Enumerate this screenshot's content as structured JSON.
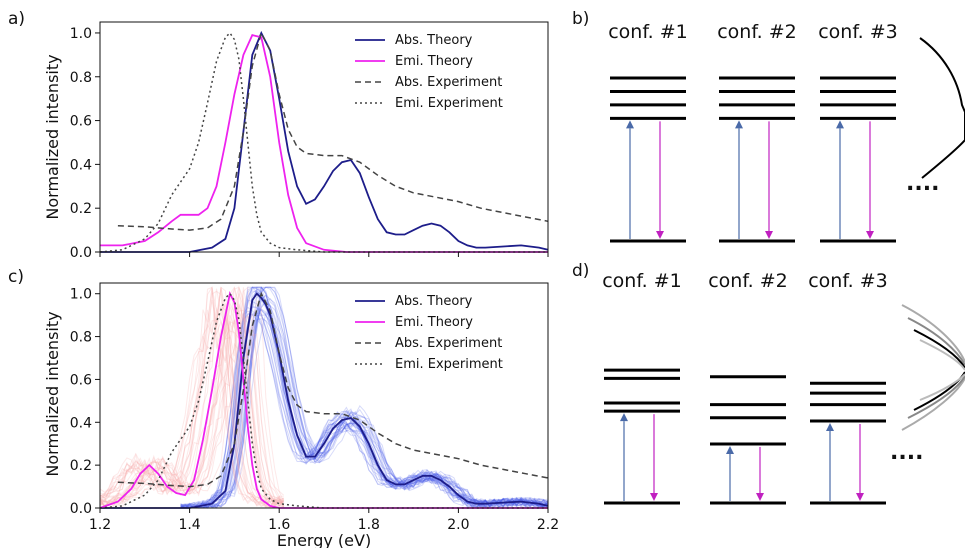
{
  "figure": {
    "panel_labels": [
      "a)",
      "b)",
      "c)",
      "d)"
    ],
    "ellipsis": "...."
  },
  "colors": {
    "abs_theory": "#1d1d8a",
    "emi_theory": "#ee22ee",
    "experiment": "#444444",
    "abs_samples": "#4a5ae8",
    "emi_samples": "#f6a6a6",
    "up_arrow": "#4a6aa8",
    "down_arrow": "#c020c0"
  },
  "chart_data": [
    {
      "type": "line",
      "panel": "a)",
      "xlabel": "",
      "ylabel": "Normalized intensity",
      "xlim": [
        1.2,
        2.2
      ],
      "ylim": [
        0,
        1.05
      ],
      "xticks": [
        1.2,
        1.4,
        1.6,
        1.8,
        2.0,
        2.2
      ],
      "yticks": [
        "0.0",
        "0.2",
        "0.4",
        "0.6",
        "0.8",
        "1.0"
      ],
      "show_x_tick_labels": false,
      "legend": {
        "placement": "top-right",
        "entries": [
          "Abs. Theory",
          "Emi. Theory",
          "Abs. Experiment",
          "Emi. Experiment"
        ]
      },
      "series": [
        {
          "name": "Abs. Theory",
          "style": "solid",
          "x": [
            1.2,
            1.3,
            1.4,
            1.45,
            1.48,
            1.5,
            1.52,
            1.54,
            1.56,
            1.58,
            1.6,
            1.62,
            1.64,
            1.66,
            1.68,
            1.7,
            1.72,
            1.74,
            1.76,
            1.78,
            1.8,
            1.82,
            1.84,
            1.86,
            1.88,
            1.9,
            1.92,
            1.94,
            1.96,
            1.98,
            2.0,
            2.02,
            2.04,
            2.06,
            2.1,
            2.14,
            2.18,
            2.2
          ],
          "y": [
            0.0,
            0.0,
            0.0,
            0.02,
            0.06,
            0.2,
            0.55,
            0.9,
            1.0,
            0.92,
            0.7,
            0.46,
            0.3,
            0.22,
            0.24,
            0.3,
            0.37,
            0.41,
            0.42,
            0.36,
            0.25,
            0.15,
            0.09,
            0.08,
            0.08,
            0.1,
            0.12,
            0.13,
            0.12,
            0.09,
            0.05,
            0.03,
            0.02,
            0.02,
            0.025,
            0.03,
            0.02,
            0.01
          ]
        },
        {
          "name": "Emi. Theory",
          "style": "solid",
          "x": [
            1.2,
            1.25,
            1.3,
            1.33,
            1.36,
            1.38,
            1.4,
            1.42,
            1.44,
            1.46,
            1.48,
            1.5,
            1.52,
            1.54,
            1.56,
            1.58,
            1.6,
            1.62,
            1.64,
            1.66,
            1.7,
            1.75,
            1.8,
            2.2
          ],
          "y": [
            0.03,
            0.03,
            0.05,
            0.09,
            0.14,
            0.17,
            0.17,
            0.17,
            0.2,
            0.3,
            0.5,
            0.72,
            0.9,
            0.99,
            0.98,
            0.8,
            0.5,
            0.26,
            0.11,
            0.04,
            0.01,
            0.0,
            0.0,
            0.0
          ]
        },
        {
          "name": "Abs. Experiment",
          "style": "dashed",
          "x": [
            1.24,
            1.3,
            1.36,
            1.4,
            1.44,
            1.47,
            1.5,
            1.52,
            1.54,
            1.56,
            1.58,
            1.6,
            1.62,
            1.64,
            1.66,
            1.7,
            1.74,
            1.78,
            1.82,
            1.86,
            1.9,
            1.95,
            2.0,
            2.05,
            2.1,
            2.15,
            2.2
          ],
          "y": [
            0.12,
            0.115,
            0.105,
            0.1,
            0.11,
            0.15,
            0.3,
            0.55,
            0.85,
            1.0,
            0.92,
            0.72,
            0.56,
            0.48,
            0.45,
            0.44,
            0.44,
            0.41,
            0.35,
            0.3,
            0.27,
            0.25,
            0.23,
            0.2,
            0.18,
            0.16,
            0.14
          ]
        },
        {
          "name": "Emi. Experiment",
          "style": "dotted",
          "x": [
            1.2,
            1.25,
            1.3,
            1.33,
            1.36,
            1.38,
            1.4,
            1.42,
            1.44,
            1.46,
            1.48,
            1.49,
            1.5,
            1.51,
            1.52,
            1.53,
            1.54,
            1.55,
            1.56,
            1.58,
            1.6,
            1.64,
            1.7,
            1.8,
            2.2
          ],
          "y": [
            0.0,
            0.01,
            0.06,
            0.13,
            0.26,
            0.32,
            0.38,
            0.5,
            0.68,
            0.87,
            0.98,
            1.0,
            0.97,
            0.88,
            0.7,
            0.5,
            0.3,
            0.17,
            0.09,
            0.04,
            0.02,
            0.01,
            0.0,
            0.0,
            0.0
          ]
        }
      ]
    },
    {
      "type": "line",
      "panel": "c)",
      "xlabel": "Energy (eV)",
      "ylabel": "Normalized intensity",
      "xlim": [
        1.2,
        2.2
      ],
      "ylim": [
        0,
        1.05
      ],
      "xticks": [
        1.2,
        1.4,
        1.6,
        1.8,
        2.0,
        2.2
      ],
      "xticklabels": [
        "1.2",
        "1.4",
        "1.6",
        "1.8",
        "2.0",
        "2.2"
      ],
      "yticks": [
        "0.0",
        "0.2",
        "0.4",
        "0.6",
        "0.8",
        "1.0"
      ],
      "legend": {
        "placement": "top-right",
        "entries": [
          "Abs. Theory",
          "Emi. Theory",
          "Abs. Experiment",
          "Emi. Experiment"
        ]
      },
      "series": [
        {
          "name": "Abs. Theory",
          "style": "solid",
          "x": [
            1.2,
            1.4,
            1.45,
            1.48,
            1.5,
            1.52,
            1.54,
            1.55,
            1.56,
            1.57,
            1.58,
            1.6,
            1.62,
            1.64,
            1.66,
            1.68,
            1.7,
            1.72,
            1.74,
            1.76,
            1.78,
            1.8,
            1.82,
            1.84,
            1.86,
            1.88,
            1.9,
            1.92,
            1.94,
            1.96,
            1.98,
            2.0,
            2.02,
            2.04,
            2.06,
            2.1,
            2.14,
            2.18,
            2.2
          ],
          "y": [
            0.0,
            0.0,
            0.02,
            0.08,
            0.3,
            0.7,
            0.97,
            1.0,
            0.98,
            0.95,
            0.9,
            0.72,
            0.5,
            0.34,
            0.24,
            0.24,
            0.3,
            0.37,
            0.41,
            0.42,
            0.38,
            0.3,
            0.2,
            0.13,
            0.11,
            0.11,
            0.13,
            0.15,
            0.15,
            0.13,
            0.1,
            0.06,
            0.03,
            0.02,
            0.02,
            0.025,
            0.03,
            0.02,
            0.01
          ]
        },
        {
          "name": "Emi. Theory",
          "style": "solid",
          "x": [
            1.2,
            1.24,
            1.27,
            1.29,
            1.31,
            1.33,
            1.35,
            1.37,
            1.39,
            1.41,
            1.43,
            1.45,
            1.47,
            1.49,
            1.5,
            1.51,
            1.52,
            1.53,
            1.54,
            1.55,
            1.56,
            1.58,
            1.6,
            1.65,
            2.2
          ],
          "y": [
            0.0,
            0.03,
            0.09,
            0.16,
            0.2,
            0.16,
            0.1,
            0.07,
            0.06,
            0.13,
            0.32,
            0.55,
            0.8,
            1.0,
            0.96,
            0.82,
            0.6,
            0.38,
            0.2,
            0.09,
            0.04,
            0.01,
            0.0,
            0.0,
            0.0
          ]
        },
        {
          "name": "Abs. Experiment",
          "style": "dashed",
          "x": [
            1.24,
            1.3,
            1.36,
            1.4,
            1.44,
            1.47,
            1.5,
            1.52,
            1.54,
            1.56,
            1.58,
            1.6,
            1.62,
            1.64,
            1.66,
            1.7,
            1.74,
            1.78,
            1.82,
            1.86,
            1.9,
            1.95,
            2.0,
            2.05,
            2.1,
            2.15,
            2.2
          ],
          "y": [
            0.12,
            0.115,
            0.105,
            0.1,
            0.11,
            0.15,
            0.3,
            0.55,
            0.85,
            1.0,
            0.92,
            0.72,
            0.56,
            0.48,
            0.45,
            0.44,
            0.44,
            0.41,
            0.35,
            0.3,
            0.27,
            0.25,
            0.23,
            0.2,
            0.18,
            0.16,
            0.14
          ]
        },
        {
          "name": "Emi. Experiment",
          "style": "dotted",
          "x": [
            1.2,
            1.25,
            1.3,
            1.33,
            1.36,
            1.38,
            1.4,
            1.42,
            1.44,
            1.46,
            1.48,
            1.49,
            1.5,
            1.51,
            1.52,
            1.53,
            1.54,
            1.55,
            1.56,
            1.58,
            1.6,
            1.64,
            1.7,
            1.8,
            2.2
          ],
          "y": [
            0.0,
            0.01,
            0.06,
            0.13,
            0.26,
            0.32,
            0.38,
            0.5,
            0.68,
            0.87,
            0.98,
            1.0,
            0.97,
            0.88,
            0.7,
            0.5,
            0.3,
            0.17,
            0.09,
            0.04,
            0.02,
            0.01,
            0.0,
            0.0,
            0.0
          ]
        }
      ]
    }
  ],
  "diagram_b": {
    "configurations": [
      {
        "label": "conf. #1",
        "levels": [
          0.0,
          0.73,
          0.81,
          0.89,
          0.97
        ]
      },
      {
        "label": "conf. #2",
        "levels": [
          0.0,
          0.73,
          0.81,
          0.89,
          0.97
        ]
      },
      {
        "label": "conf. #3",
        "levels": [
          0.0,
          0.73,
          0.81,
          0.89,
          0.97
        ]
      }
    ]
  },
  "diagram_d": {
    "configurations": [
      {
        "label": "conf. #1",
        "levels": [
          0.0,
          0.56,
          0.61,
          0.76,
          0.81
        ]
      },
      {
        "label": "conf. #2",
        "levels": [
          0.0,
          0.36,
          0.52,
          0.6,
          0.77
        ]
      },
      {
        "label": "conf. #3",
        "levels": [
          0.0,
          0.5,
          0.6,
          0.67,
          0.73
        ]
      }
    ]
  }
}
